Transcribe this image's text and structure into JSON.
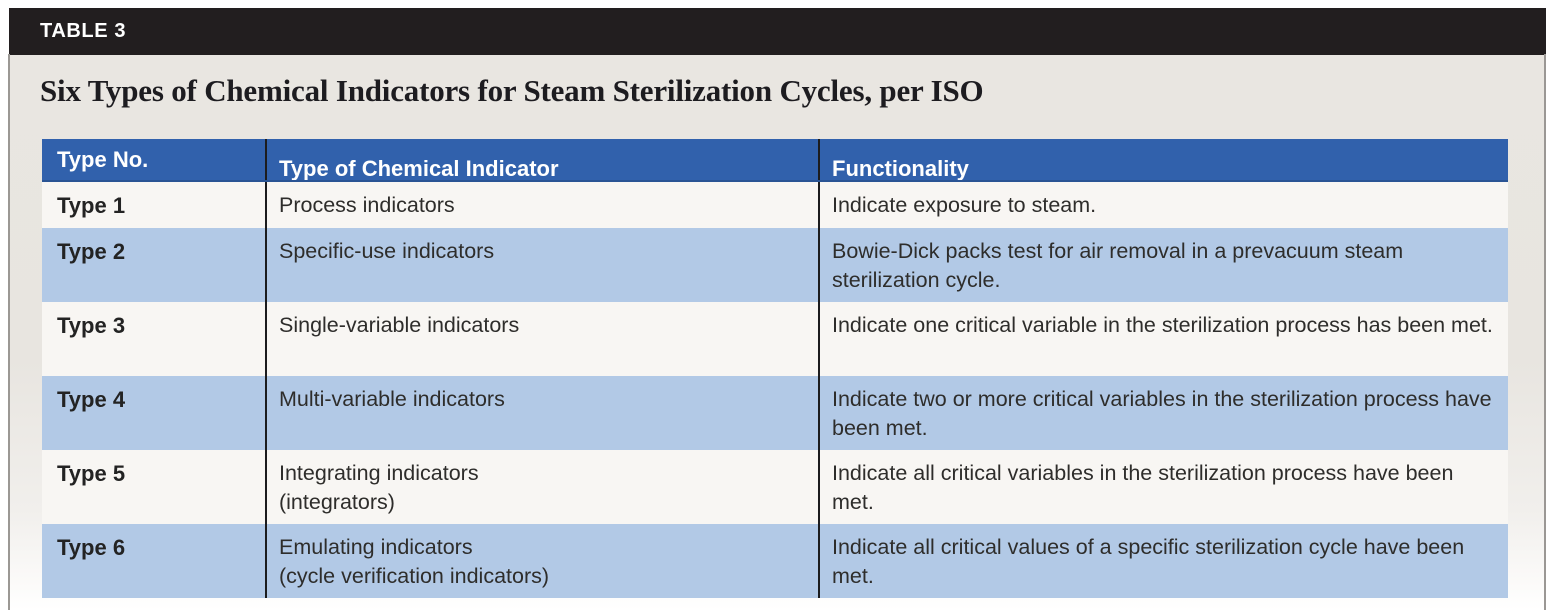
{
  "table_label": "TABLE 3",
  "title": "Six Types of Chemical Indicators for Steam Sterilization Cycles, per ISO",
  "colors": {
    "label_bar": "#221e1f",
    "header_blue": "#3161ac",
    "row_light_blue": "#b2c9e6",
    "row_white": "#f8f6f3",
    "page_beige": "#e9e6e1"
  },
  "table": {
    "columns": [
      "Type No.",
      "Type of Chemical Indicator",
      "Functionality"
    ],
    "rows": [
      {
        "type_no": "Type 1",
        "indicator": "Process indicators",
        "functionality": "Indicate exposure to steam."
      },
      {
        "type_no": "Type 2",
        "indicator": "Specific-use indicators",
        "functionality": "Bowie-Dick packs test for air removal in a prevacuum steam sterilization cycle."
      },
      {
        "type_no": "Type 3",
        "indicator": "Single-variable indicators",
        "functionality": "Indicate one critical variable in the sterilization process has been met."
      },
      {
        "type_no": "Type 4",
        "indicator": "Multi-variable indicators",
        "functionality": "Indicate two or more critical variables in the sterilization process have been met."
      },
      {
        "type_no": "Type 5",
        "indicator": "Integrating indicators",
        "indicator_line2": "(integrators)",
        "functionality": "Indicate all critical variables in the sterilization process have been met."
      },
      {
        "type_no": "Type 6",
        "indicator": "Emulating indicators",
        "indicator_line2": "(cycle verification indicators)",
        "functionality": "Indicate all critical values of a specific sterilization cycle have been met."
      }
    ]
  }
}
